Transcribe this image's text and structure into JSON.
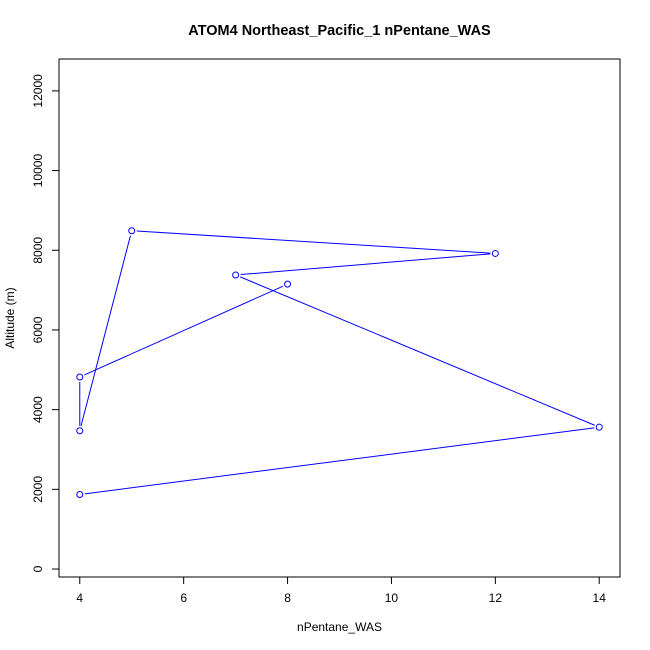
{
  "chart_data": {
    "type": "line",
    "title": "ATOM4 Northeast_Pacific_1 nPentane_WAS",
    "xlabel": "nPentane_WAS",
    "ylabel": "Altitude (m)",
    "xlim": [
      3.6,
      14.4
    ],
    "ylim": [
      -200,
      12800
    ],
    "xticks": [
      4,
      6,
      8,
      10,
      12,
      14
    ],
    "yticks": [
      0,
      2000,
      4000,
      6000,
      8000,
      10000,
      12000
    ],
    "grid": false,
    "legend": "none",
    "series": [
      {
        "color": "#0000ff",
        "markers": "open-circle",
        "points": [
          {
            "x": 4,
            "y": 1870
          },
          {
            "x": 14,
            "y": 3560
          },
          {
            "x": 7,
            "y": 7380
          },
          {
            "x": 12,
            "y": 7920
          },
          {
            "x": 5,
            "y": 8490
          },
          {
            "x": 4,
            "y": 3470
          },
          {
            "x": 4,
            "y": 4820
          },
          {
            "x": 8,
            "y": 7150
          }
        ]
      }
    ]
  }
}
